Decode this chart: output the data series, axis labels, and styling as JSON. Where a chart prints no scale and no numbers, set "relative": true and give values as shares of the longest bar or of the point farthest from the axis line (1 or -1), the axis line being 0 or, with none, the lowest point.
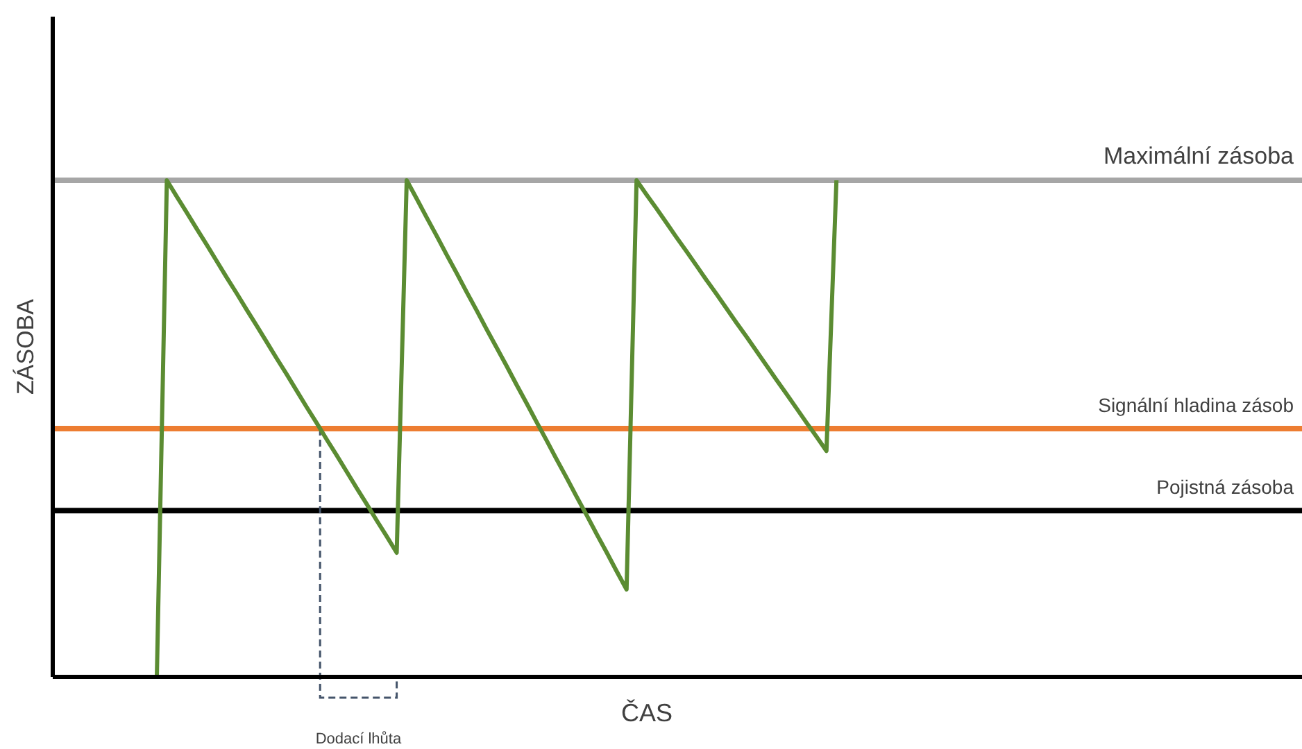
{
  "chart_data": {
    "type": "line",
    "relative": true,
    "xlabel": "ČAS",
    "ylabel": "ZÁSOBA",
    "line_style": "solid",
    "categories": [
      null,
      null,
      null,
      null,
      null,
      null,
      null,
      null,
      null,
      null,
      null,
      null,
      null,
      null,
      null,
      null,
      null,
      null,
      null,
      null,
      null,
      null,
      null,
      null,
      null,
      null,
      null,
      null,
      null,
      null,
      null,
      null,
      null,
      null,
      null,
      null,
      null,
      null,
      null,
      null,
      null,
      null,
      null,
      null,
      null,
      null,
      null,
      null,
      null,
      null,
      null,
      null,
      null,
      null,
      null,
      null,
      null,
      null,
      null,
      null,
      null,
      null,
      null,
      null,
      null,
      null,
      null,
      null,
      null
    ],
    "series": [
      {
        "color": "#5b8c32",
        "values": [
          0,
          1,
          0.967,
          0.935,
          0.902,
          0.87,
          0.837,
          0.804,
          0.772,
          0.739,
          0.707,
          0.674,
          0.641,
          0.609,
          0.576,
          0.543,
          0.511,
          0.478,
          0.446,
          0.413,
          0.38,
          0.348,
          0.315,
          0.283,
          0.25,
          1,
          0.963,
          0.925,
          0.888,
          0.85,
          0.813,
          0.775,
          0.738,
          0.7,
          0.663,
          0.626,
          0.588,
          0.551,
          0.513,
          0.476,
          0.438,
          0.401,
          0.363,
          0.326,
          0.288,
          0.251,
          0.213,
          0.176,
          1,
          0.971,
          0.943,
          0.914,
          0.885,
          0.857,
          0.828,
          0.799,
          0.771,
          0.742,
          0.713,
          0.685,
          0.656,
          0.627,
          0.598,
          0.57,
          0.541,
          0.512,
          0.484,
          0.455,
          1
        ]
      }
    ],
    "ref_lines": [
      {
        "axis": "y",
        "value": 1,
        "label": "Maximální zásoba",
        "color": "#a6a6a6"
      },
      {
        "axis": "y",
        "value": 0.5,
        "label": "Signální hladina zásob",
        "color": "#ed7d31"
      },
      {
        "axis": "y",
        "value": 0.335,
        "label": "Pojistná zásoba",
        "color": "#000000"
      }
    ],
    "annotations": [
      "Dodací lhůta"
    ]
  }
}
